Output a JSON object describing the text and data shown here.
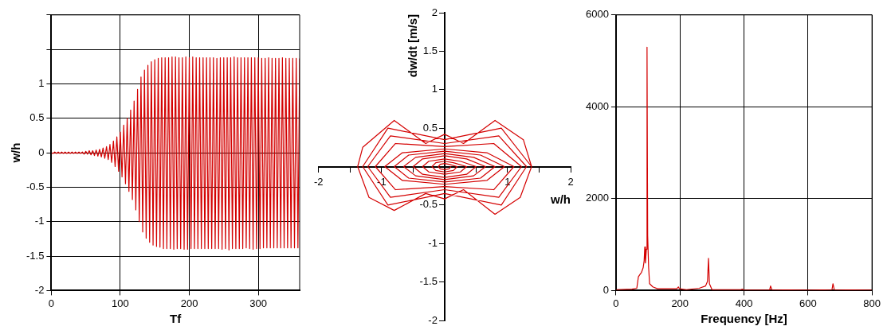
{
  "chart_data": [
    {
      "type": "line",
      "xlabel": "Tf",
      "ylabel": "w/h",
      "xlim": [
        0,
        360
      ],
      "ylim": [
        -2,
        2
      ],
      "xticks": [
        0,
        100,
        200,
        300
      ],
      "yticks": [
        -2,
        -1.5,
        -1,
        -0.5,
        0,
        0.5,
        1,
        {
          "value": 1.5,
          "label": null
        },
        {
          "value": 2,
          "label": null
        }
      ],
      "grid": true,
      "series": [
        {
          "color": "#d40000",
          "x": [
            0,
            2.5,
            5,
            7.5,
            10,
            12.5,
            15,
            17.5,
            20,
            22.5,
            25,
            27.5,
            30,
            32.5,
            35,
            37.5,
            40,
            42.5,
            45,
            47.5,
            50,
            52.5,
            55,
            57.5,
            60,
            62.5,
            65,
            67.5,
            70,
            72.5,
            75,
            77.5,
            80,
            82.5,
            85,
            87.5,
            90,
            92.5,
            95,
            97.5,
            100,
            102.5,
            105,
            107.5,
            110,
            112.5,
            115,
            117.5,
            120,
            122.5,
            125,
            127.5,
            130,
            132.5,
            135,
            137.5,
            140,
            142.5,
            145,
            147.5,
            150,
            152.5,
            155,
            157.5,
            160,
            162.5,
            165,
            167.5,
            170,
            172.5,
            175,
            177.5,
            180,
            182.5,
            185,
            187.5,
            190,
            192.5,
            195,
            197.5,
            200,
            202.5,
            205,
            207.5,
            210,
            212.5,
            215,
            217.5,
            220,
            222.5,
            225,
            227.5,
            230,
            232.5,
            235,
            237.5,
            240,
            242.5,
            245,
            247.5,
            250,
            252.5,
            255,
            257.5,
            260,
            262.5,
            265,
            267.5,
            270,
            272.5,
            275,
            277.5,
            280,
            282.5,
            285,
            287.5,
            290,
            292.5,
            295,
            297.5,
            300,
            302.5,
            305,
            307.5,
            310,
            312.5,
            315,
            317.5,
            320,
            322.5,
            325,
            327.5,
            330,
            332.5,
            335,
            337.5,
            340,
            342.5,
            345,
            347.5,
            350,
            352.5,
            355,
            357.5,
            360
          ],
          "values": [
            0,
            -0.01,
            0.01,
            -0.01,
            0.01,
            -0.01,
            0.01,
            -0.01,
            0.01,
            -0.01,
            0.01,
            -0.01,
            0.01,
            -0.01,
            0.01,
            -0.01,
            0.01,
            -0.01,
            0.01,
            -0.02,
            0.02,
            -0.02,
            0.03,
            -0.03,
            0.03,
            -0.04,
            0.04,
            -0.05,
            0.05,
            -0.06,
            0.07,
            -0.08,
            0.09,
            -0.1,
            0.12,
            -0.14,
            0.17,
            -0.2,
            0.23,
            -0.27,
            0.3,
            -0.35,
            0.4,
            -0.45,
            0.5,
            -0.56,
            0.62,
            -0.68,
            0.75,
            -0.83,
            0.92,
            -1.0,
            1.1,
            -1.15,
            1.2,
            -1.24,
            1.27,
            -1.3,
            1.32,
            -1.34,
            1.35,
            -1.36,
            1.37,
            -1.37,
            1.38,
            -1.39,
            1.38,
            -1.39,
            1.38,
            -1.39,
            1.39,
            -1.4,
            1.39,
            -1.39,
            1.38,
            -1.39,
            1.38,
            -1.4,
            1.39,
            -1.4,
            1.38,
            -1.39,
            1.39,
            -1.39,
            1.38,
            -1.39,
            1.38,
            -1.39,
            1.38,
            -1.39,
            1.38,
            -1.39,
            1.38,
            -1.39,
            1.38,
            -1.39,
            1.37,
            -1.39,
            1.38,
            -1.4,
            1.38,
            -1.39,
            1.38,
            -1.41,
            1.38,
            -1.39,
            1.39,
            -1.39,
            1.38,
            -1.39,
            1.38,
            -1.39,
            1.38,
            -1.38,
            1.38,
            -1.39,
            1.38,
            -1.4,
            1.38,
            -1.39,
            1.38,
            -1.39,
            1.37,
            -1.38,
            1.37,
            -1.38,
            1.38,
            -1.38,
            1.37,
            -1.38,
            1.37,
            -1.38,
            1.37,
            -1.38,
            1.38,
            -1.38,
            1.37,
            -1.38,
            1.37,
            -1.38,
            1.37,
            -1.38,
            1.37,
            -1.38,
            1.37
          ]
        }
      ]
    },
    {
      "type": "line",
      "xlabel": "w/h",
      "ylabel": "dw/dt [m/s]",
      "xlim": [
        -2,
        2
      ],
      "ylim": [
        -2,
        2
      ],
      "xticks": [
        -2,
        {
          "value": -1.5,
          "label": null
        },
        -1,
        {
          "value": -0.5,
          "label": null
        },
        {
          "value": 0,
          "label": null
        },
        {
          "value": 0.5,
          "label": null
        },
        1,
        {
          "value": 1.5,
          "label": null
        },
        2
      ],
      "yticks": [
        -2,
        -1.5,
        -1,
        -0.5,
        {
          "value": 0,
          "label": null
        },
        0.5,
        1,
        1.5,
        2
      ],
      "grid": false,
      "series": [
        {
          "color": "#d40000",
          "x": [
            0.1,
            0.07,
            0,
            -0.07,
            -0.1,
            -0.07,
            0,
            0.07,
            0.2,
            0.14,
            0,
            -0.14,
            -0.2,
            -0.14,
            0,
            0.14,
            0.35,
            0.25,
            0,
            -0.25,
            -0.35,
            -0.25,
            0,
            0.25,
            0.5,
            0.35,
            0,
            -0.35,
            -0.5,
            -0.35,
            0,
            0.35,
            0.65,
            0.46,
            0,
            -0.46,
            -0.65,
            -0.46,
            0,
            0.46,
            0.8,
            0.57,
            0,
            -0.57,
            -0.8,
            -0.57,
            0,
            0.57,
            0.95,
            0.67,
            0,
            -0.67,
            -0.95,
            -0.67,
            0,
            0.67,
            1.1,
            0.78,
            0,
            -0.78,
            -1.1,
            -0.78,
            0,
            0.78,
            1.22,
            0.86,
            0,
            -0.86,
            -1.22,
            -0.86,
            0,
            0.86,
            1.3,
            0.9,
            0,
            -0.9,
            -1.3,
            -0.9,
            0,
            0.9,
            1.38,
            1.2,
            0.8,
            0.3,
            0,
            -0.3,
            -0.8,
            -1.2,
            -1.38,
            -1.3,
            -0.8,
            -0.3,
            0,
            0.3,
            0.8,
            1.25,
            1.38
          ],
          "values": [
            0,
            -0.03,
            -0.04,
            -0.03,
            0,
            0.03,
            0.04,
            0.03,
            0,
            -0.05,
            -0.07,
            -0.05,
            0,
            0.05,
            0.07,
            0.05,
            0,
            -0.07,
            -0.1,
            -0.07,
            0,
            0.07,
            0.1,
            0.07,
            0,
            -0.1,
            -0.14,
            -0.1,
            0,
            0.1,
            0.14,
            0.1,
            0,
            -0.12,
            -0.17,
            -0.12,
            0,
            0.12,
            0.17,
            0.12,
            0,
            -0.15,
            -0.2,
            -0.15,
            0,
            0.15,
            0.2,
            0.15,
            0,
            -0.18,
            -0.23,
            -0.18,
            0,
            0.18,
            0.23,
            0.18,
            0,
            -0.3,
            -0.26,
            -0.3,
            0,
            0.3,
            0.26,
            0.3,
            0,
            -0.4,
            -0.3,
            -0.4,
            0,
            0.4,
            0.3,
            0.4,
            0,
            -0.5,
            -0.35,
            -0.5,
            0,
            0.5,
            0.35,
            0.5,
            0,
            -0.4,
            -0.62,
            -0.3,
            -0.42,
            -0.35,
            -0.57,
            -0.4,
            0,
            0.25,
            0.6,
            0.3,
            0.42,
            0.3,
            0.6,
            0.35,
            0
          ]
        }
      ]
    },
    {
      "type": "line",
      "xlabel": "Frequency [Hz]",
      "xlim": [
        0,
        800
      ],
      "ylim": [
        0,
        6000
      ],
      "xticks": [
        0,
        200,
        400,
        600,
        800
      ],
      "yticks": [
        0,
        2000,
        4000,
        6000
      ],
      "grid": true,
      "series": [
        {
          "color": "#d40000",
          "x": [
            0,
            50,
            65,
            70,
            75,
            80,
            85,
            88,
            90,
            92,
            95,
            97,
            99,
            102,
            105,
            115,
            130,
            190,
            195,
            198,
            220,
            260,
            280,
            286,
            289,
            292,
            300,
            390,
            395,
            400,
            480,
            483,
            487,
            600,
            675,
            678,
            682,
            800
          ],
          "values": [
            20,
            30,
            50,
            300,
            350,
            400,
            500,
            650,
            950,
            600,
            900,
            5300,
            1200,
            500,
            150,
            80,
            40,
            40,
            80,
            40,
            20,
            50,
            100,
            200,
            700,
            150,
            20,
            20,
            30,
            10,
            10,
            100,
            20,
            10,
            20,
            150,
            20,
            10
          ]
        }
      ]
    }
  ]
}
